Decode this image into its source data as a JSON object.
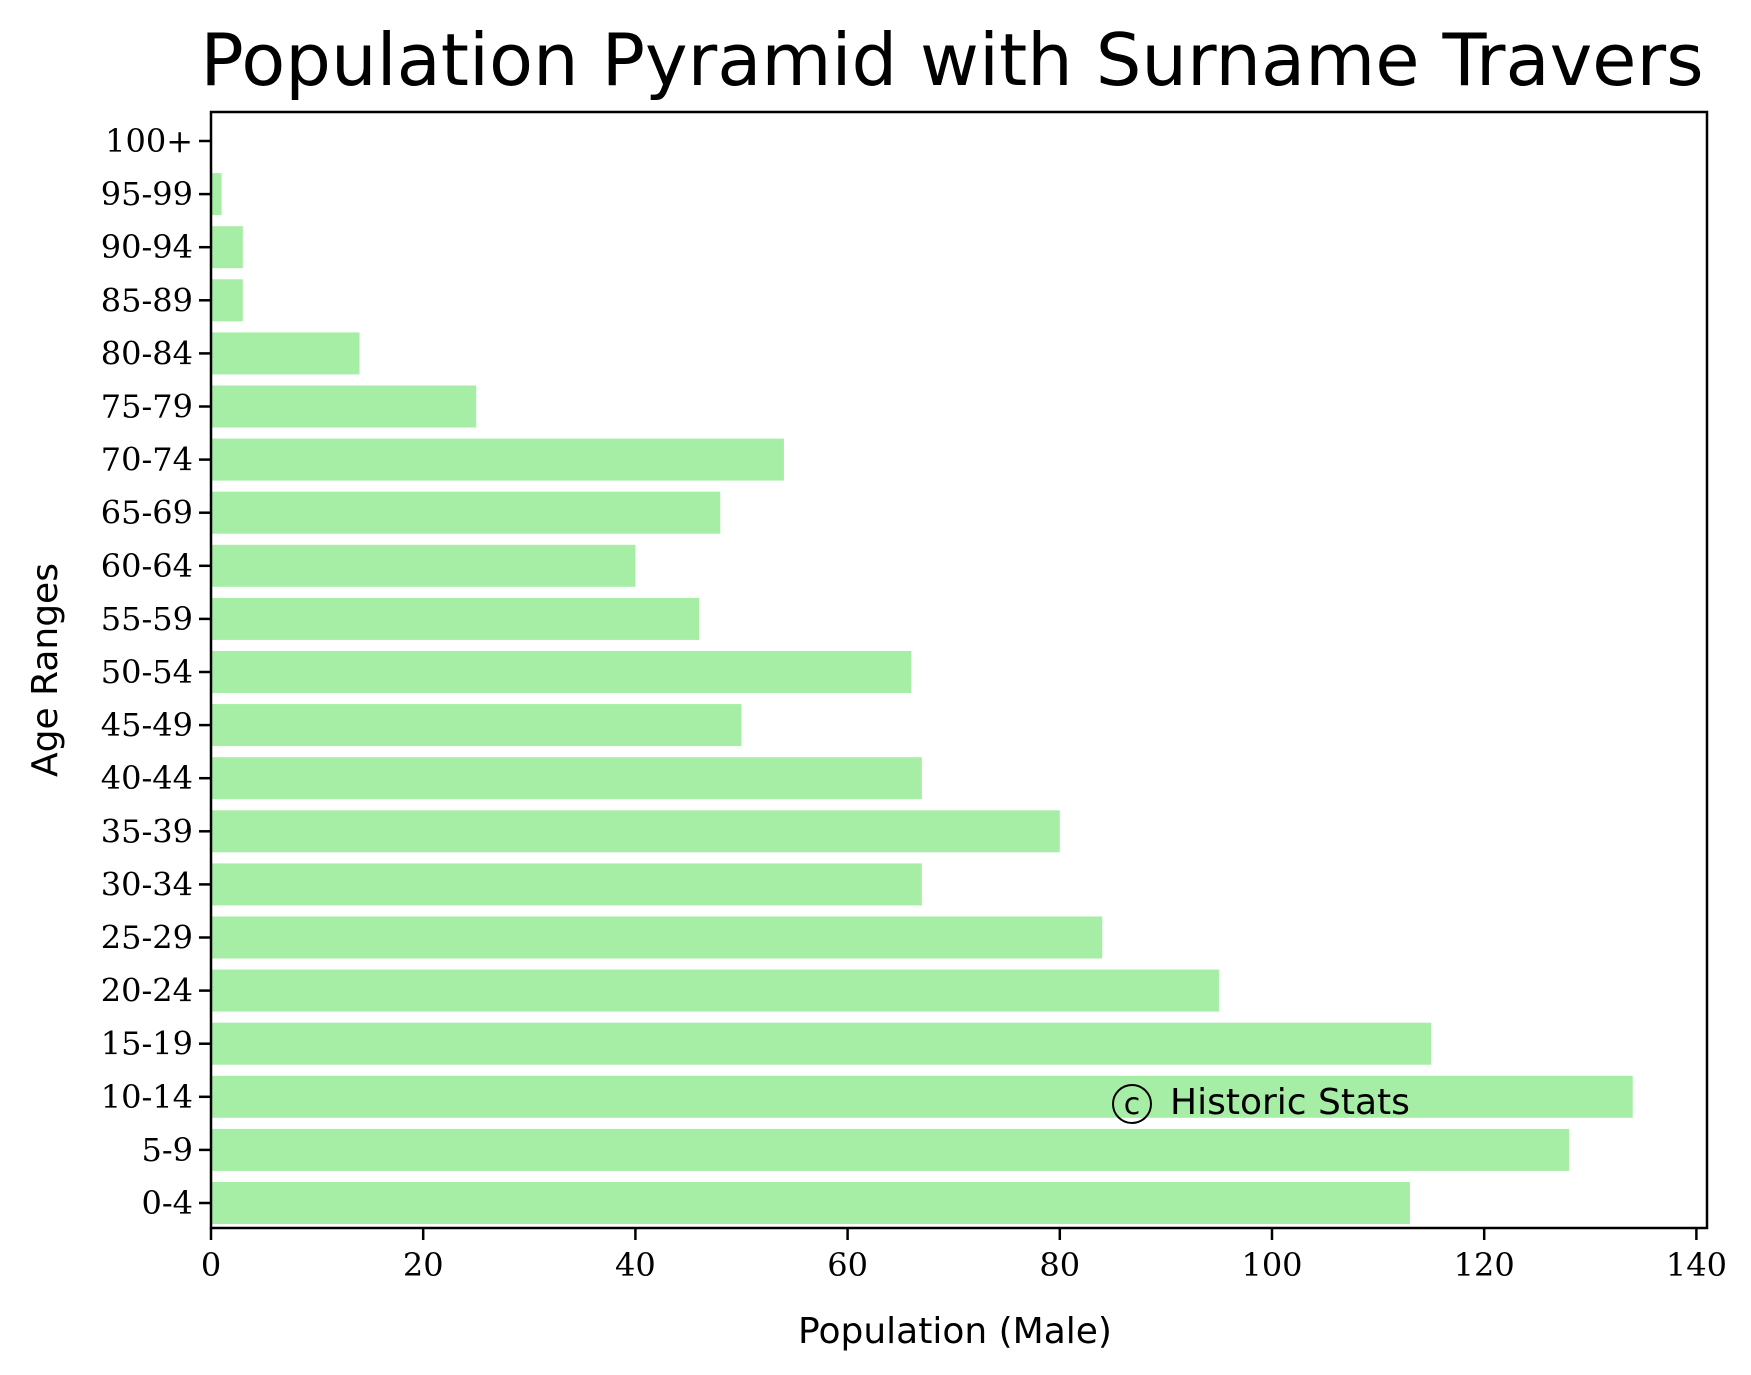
{
  "chart_data": {
    "type": "bar",
    "orientation": "horizontal",
    "title": "Population Pyramid with Surname Travers",
    "xlabel": "Population (Male)",
    "ylabel": "Age Ranges",
    "categories": [
      "0-4",
      "5-9",
      "10-14",
      "15-19",
      "20-24",
      "25-29",
      "30-34",
      "35-39",
      "40-44",
      "45-49",
      "50-54",
      "55-59",
      "60-64",
      "65-69",
      "70-74",
      "75-79",
      "80-84",
      "85-89",
      "90-94",
      "95-99",
      "100+"
    ],
    "series": [
      {
        "values": [
          113,
          128,
          134,
          115,
          95,
          84,
          67,
          80,
          67,
          50,
          66,
          46,
          40,
          48,
          54,
          25,
          14,
          3,
          3,
          1,
          0
        ],
        "color": "#a6eda6"
      }
    ],
    "xlim": [
      0,
      141
    ],
    "xticks": [
      0,
      20,
      40,
      60,
      80,
      100,
      120,
      140
    ],
    "grid": false,
    "annotation": {
      "symbol": "c",
      "text": "Historic Stats"
    }
  }
}
